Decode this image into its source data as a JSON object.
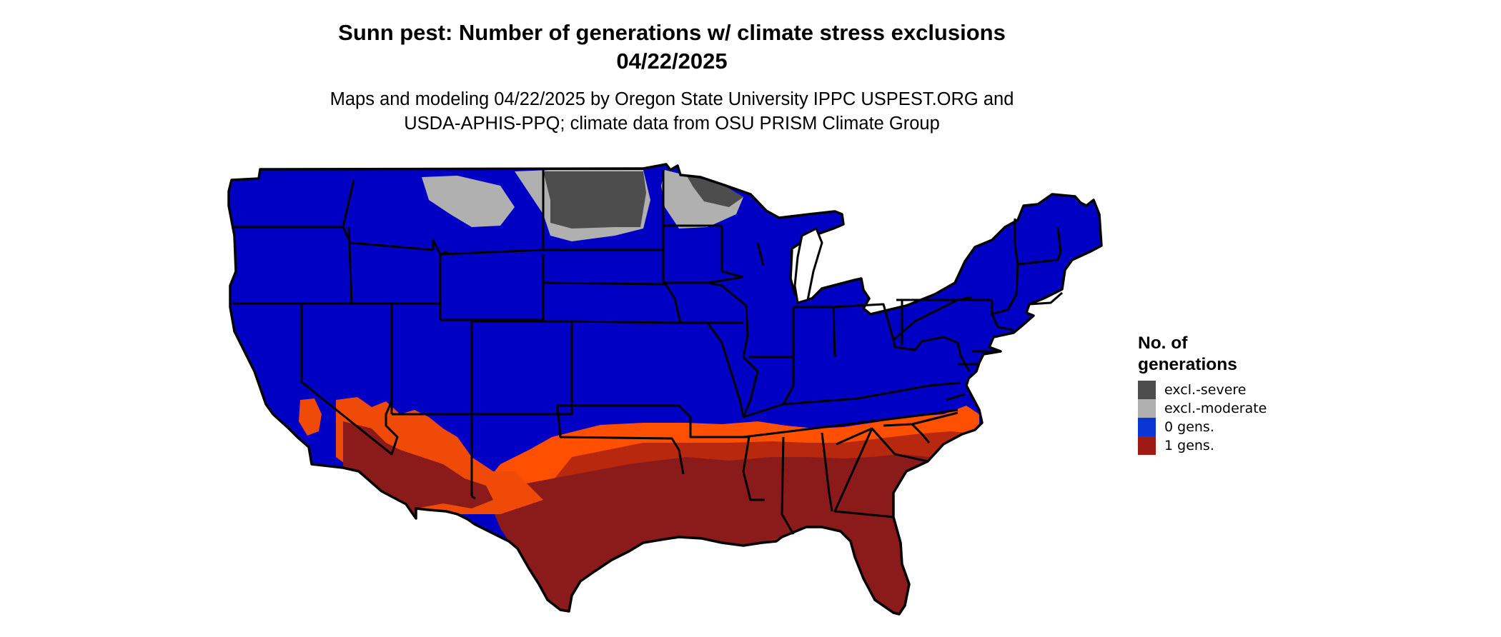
{
  "title_line1": "Sunn pest: Number of generations w/ climate stress exclusions",
  "title_line2": "04/22/2025",
  "subtitle_line1": "Maps and modeling 04/22/2025 by Oregon State University IPPC USPEST.ORG and",
  "subtitle_line2": "USDA-APHIS-PPQ; climate data from OSU PRISM Climate Group",
  "legend": {
    "title": "No. of\ngenerations",
    "items": [
      {
        "label": "excl.-severe",
        "color": "#4d4d4d"
      },
      {
        "label": "excl.-moderate",
        "color": "#b0b0b0"
      },
      {
        "label": "0 gens.",
        "color": "#0a36d6"
      },
      {
        "label": "1 gens.",
        "color": "#a01a14"
      }
    ]
  },
  "map_colors": {
    "zero_gens": "#0000c4",
    "one_gens_dark": "#8b1a1a",
    "one_gens_mid": "#b8280f",
    "one_gens_orange": "#f04a08",
    "one_gens_bright": "#ff4f00",
    "excl_severe": "#4d4d4d",
    "excl_moderate": "#b0b0b0",
    "border": "#000000"
  }
}
